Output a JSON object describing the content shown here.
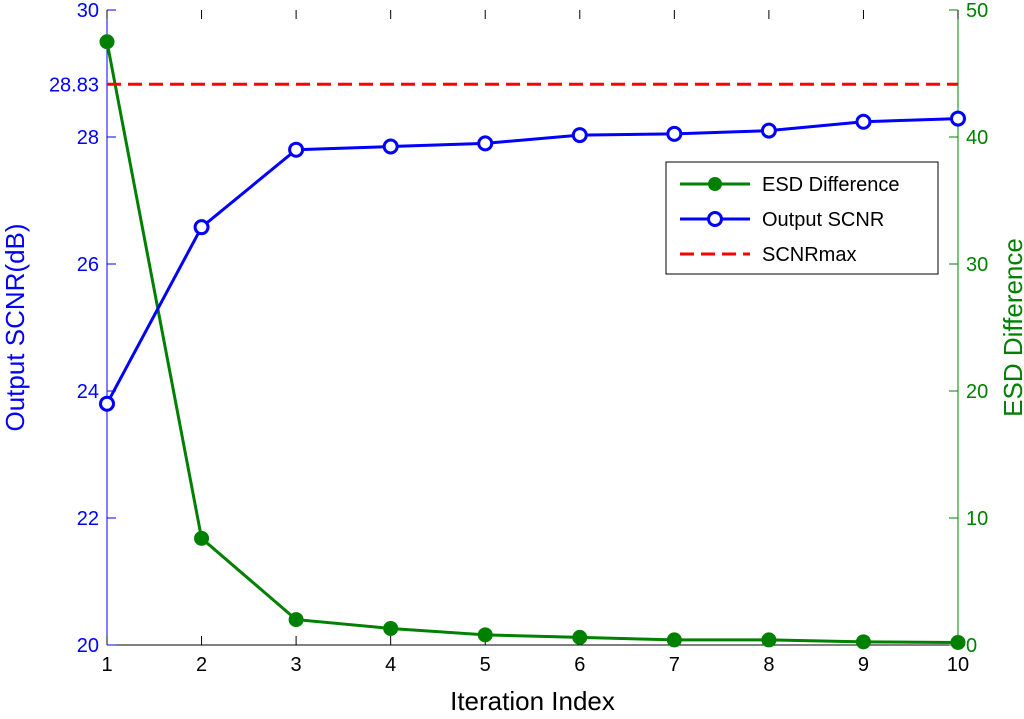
{
  "chart_data": {
    "type": "line",
    "title": "",
    "xlabel": "Iteration Index",
    "ylabel_left": "Output SCNR(dB)",
    "ylabel_right": "ESD Difference",
    "x": [
      1,
      2,
      3,
      4,
      5,
      6,
      7,
      8,
      9,
      10
    ],
    "xlim": [
      1,
      10
    ],
    "ylim_left": [
      20,
      30
    ],
    "ylim_right": [
      0,
      50
    ],
    "yticks_left": [
      "20",
      "22",
      "24",
      "26",
      "28",
      "28.83",
      "30"
    ],
    "yticks_left_values": [
      20,
      22,
      24,
      26,
      28,
      28.83,
      30
    ],
    "yticks_right": [
      "0",
      "10",
      "20",
      "30",
      "40",
      "50"
    ],
    "yticks_right_values": [
      0,
      10,
      20,
      30,
      40,
      50
    ],
    "xticks": [
      "1",
      "2",
      "3",
      "4",
      "5",
      "6",
      "7",
      "8",
      "9",
      "10"
    ],
    "grid": false,
    "legend_position": "upper-right",
    "series": [
      {
        "name": "ESD Difference",
        "axis": "right",
        "color": "#008000",
        "marker": "filled-circle",
        "line": "solid",
        "values": [
          47.5,
          8.4,
          2.0,
          1.3,
          0.8,
          0.6,
          0.4,
          0.4,
          0.25,
          0.2
        ]
      },
      {
        "name": "Output SCNR",
        "axis": "left",
        "color": "#0000FF",
        "marker": "open-circle",
        "line": "solid",
        "values": [
          23.8,
          26.58,
          27.8,
          27.85,
          27.9,
          28.03,
          28.05,
          28.1,
          28.24,
          28.29
        ]
      },
      {
        "name": "SCNRmax",
        "axis": "left",
        "color": "#FF0000",
        "marker": "none",
        "line": "dashed",
        "values": [
          28.83,
          28.83,
          28.83,
          28.83,
          28.83,
          28.83,
          28.83,
          28.83,
          28.83,
          28.83
        ]
      }
    ],
    "left_axis_color": "#0000FF",
    "right_axis_color": "#008000"
  }
}
